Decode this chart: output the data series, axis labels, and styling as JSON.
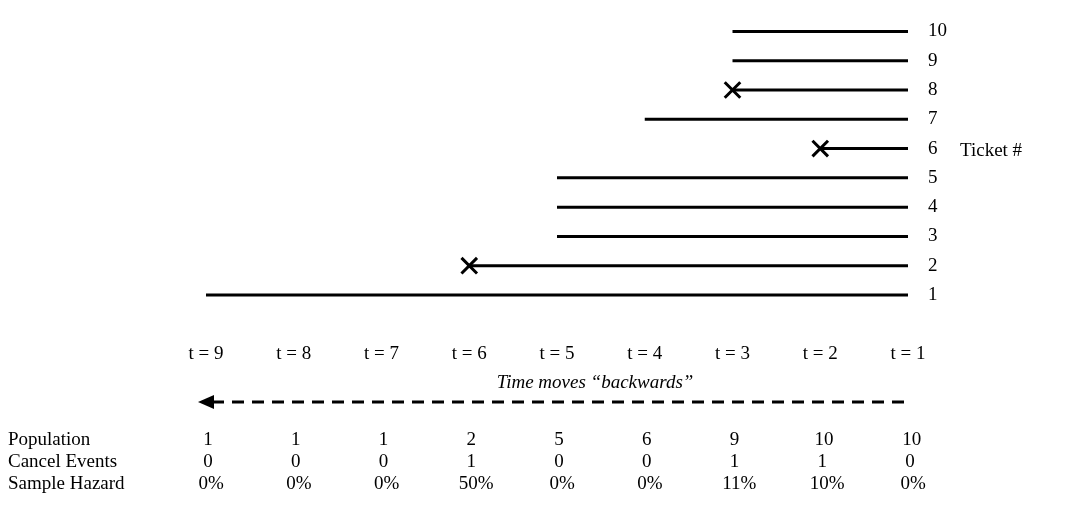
{
  "chart_data": [
    {
      "type": "line",
      "xlim": [
        9,
        1
      ],
      "xticks": [
        {
          "value": 9,
          "label": "t = 9"
        },
        {
          "value": 8,
          "label": "t = 8"
        },
        {
          "value": 7,
          "label": "t = 7"
        },
        {
          "value": 6,
          "label": "t = 6"
        },
        {
          "value": 5,
          "label": "t = 5"
        },
        {
          "value": 4,
          "label": "t = 4"
        },
        {
          "value": 3,
          "label": "t = 3"
        },
        {
          "value": 2,
          "label": "t = 2"
        },
        {
          "value": 1,
          "label": "t = 1"
        }
      ],
      "ylim": [
        1,
        10
      ],
      "yticks": [
        1,
        2,
        3,
        4,
        5,
        6,
        7,
        8,
        9,
        10
      ],
      "ylabel": "Ticket #",
      "annotations": [
        "Time moves “backwards”"
      ],
      "marker": "none",
      "line_style": "solid",
      "series": [
        {
          "color": "#000000",
          "x": [
            9,
            1
          ],
          "values": [
            1,
            1
          ]
        },
        {
          "color": "#000000",
          "x": [
            6,
            1
          ],
          "values": [
            2,
            2
          ]
        },
        {
          "color": "#000000",
          "x": [
            5,
            1
          ],
          "values": [
            3,
            3
          ]
        },
        {
          "color": "#000000",
          "x": [
            5,
            1
          ],
          "values": [
            4,
            4
          ]
        },
        {
          "color": "#000000",
          "x": [
            5,
            1
          ],
          "values": [
            5,
            5
          ]
        },
        {
          "color": "#000000",
          "x": [
            2,
            1
          ],
          "values": [
            6,
            6
          ]
        },
        {
          "color": "#000000",
          "x": [
            4,
            1
          ],
          "values": [
            7,
            7
          ]
        },
        {
          "color": "#000000",
          "x": [
            3,
            1
          ],
          "values": [
            8,
            8
          ]
        },
        {
          "color": "#000000",
          "x": [
            3,
            1
          ],
          "values": [
            9,
            9
          ]
        },
        {
          "color": "#000000",
          "x": [
            3,
            1
          ],
          "values": [
            10,
            10
          ]
        },
        {
          "type": "scatter",
          "marker": "cross",
          "color": "#000000",
          "x": [
            6,
            2,
            3
          ],
          "values": [
            2,
            6,
            8
          ]
        }
      ]
    },
    {
      "type": "other",
      "categories": [
        null,
        null,
        null,
        null,
        null,
        null,
        null,
        null,
        null
      ],
      "y_categories": [
        "Population",
        "Cancel Events",
        "Sample Hazard"
      ],
      "cell_labels": [
        [
          "1",
          "1",
          "1",
          "2",
          "5",
          "6",
          "9",
          "10",
          "10"
        ],
        [
          "0",
          "0",
          "0",
          "1",
          "0",
          "0",
          "1",
          "1",
          "0"
        ],
        [
          "0%",
          "0%",
          "0%",
          "50%",
          "0%",
          "0%",
          "11%",
          "10%",
          "0%"
        ]
      ]
    }
  ]
}
